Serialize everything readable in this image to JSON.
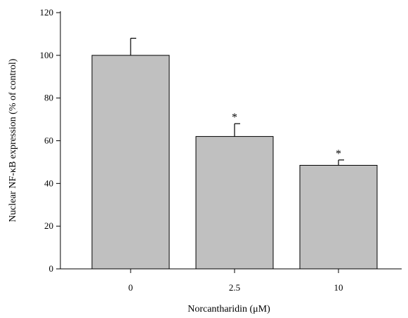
{
  "chart_data": {
    "type": "bar",
    "categories": [
      "0",
      "2.5",
      "10"
    ],
    "values": [
      100,
      62,
      48.5
    ],
    "errors": [
      8,
      6,
      2.5
    ],
    "significance": [
      "",
      "*",
      "*"
    ],
    "xlabel": "Norcantharidin (μM)",
    "ylabel": "Nuclear NF-κB expression (% of control)",
    "ylim": [
      0,
      120
    ],
    "yticks": [
      0,
      20,
      40,
      60,
      80,
      100,
      120
    ],
    "bar_color": "#c0c0c0",
    "grid": false,
    "legend": "none"
  }
}
